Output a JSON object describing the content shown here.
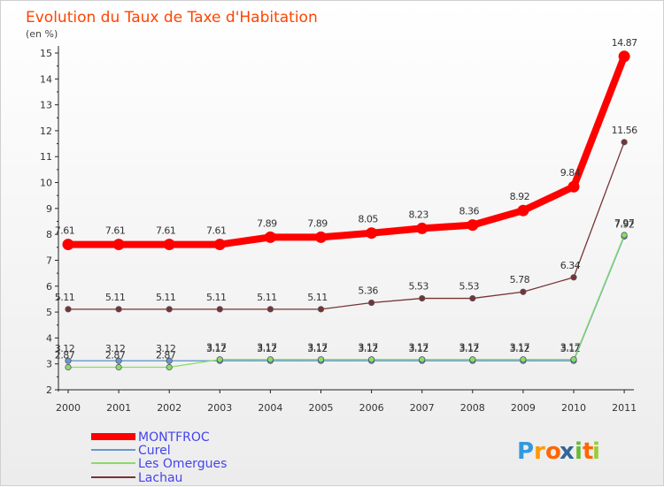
{
  "chart_data": {
    "type": "line",
    "title": "Evolution du Taux de Taxe d'Habitation",
    "ylabel": "(en %)",
    "xlabel": "",
    "ylim": [
      2,
      15
    ],
    "yticks": [
      "2",
      "3",
      "4",
      "5",
      "6",
      "7",
      "8",
      "9",
      "10",
      "11",
      "12",
      "13",
      "14",
      "15"
    ],
    "categories": [
      "2000",
      "2001",
      "2002",
      "2003",
      "2004",
      "2005",
      "2006",
      "2007",
      "2008",
      "2009",
      "2010",
      "2011"
    ],
    "series": [
      {
        "name": "MONTFROC",
        "color": "#ff0000",
        "values": [
          7.61,
          7.61,
          7.61,
          7.61,
          7.89,
          7.89,
          8.05,
          8.23,
          8.36,
          8.92,
          9.84,
          14.87
        ],
        "labels": [
          "7.61",
          "7.61",
          "7.61",
          "7.61",
          "7.89",
          "7.89",
          "8.05",
          "8.23",
          "8.36",
          "8.92",
          "9.84",
          "14.87"
        ]
      },
      {
        "name": "Curel",
        "color": "#6699cc",
        "values": [
          3.12,
          3.12,
          3.12,
          3.12,
          3.12,
          3.12,
          3.12,
          3.12,
          3.12,
          3.12,
          3.12,
          7.92
        ],
        "labels": [
          "3.12",
          "3.12",
          "3.12",
          "3.12",
          "3.12",
          "3.12",
          "3.12",
          "3.12",
          "3.12",
          "3.12",
          "3.12",
          "7.92"
        ]
      },
      {
        "name": "Les Omergues",
        "color": "#88dd66",
        "values": [
          2.87,
          2.87,
          2.87,
          3.17,
          3.17,
          3.17,
          3.17,
          3.17,
          3.17,
          3.17,
          3.17,
          7.97
        ],
        "labels": [
          "2.87",
          "2.87",
          "2.87",
          "3.17",
          "3.17",
          "3.17",
          "3.17",
          "3.17",
          "3.17",
          "3.17",
          "3.17",
          "7.97"
        ]
      },
      {
        "name": "Lachau",
        "color": "#773333",
        "values": [
          5.11,
          5.11,
          5.11,
          5.11,
          5.11,
          5.11,
          5.36,
          5.53,
          5.53,
          5.78,
          6.34,
          11.56
        ],
        "labels": [
          "5.11",
          "5.11",
          "5.11",
          "5.11",
          "5.11",
          "5.11",
          "5.36",
          "5.53",
          "5.53",
          "5.78",
          "6.34",
          "11.56"
        ]
      }
    ],
    "legend_position": "bottom-left",
    "grid": false
  },
  "logo": {
    "letters": [
      "P",
      "r",
      "o",
      "x",
      "i",
      "t",
      "i"
    ],
    "colors": [
      "#3399dd",
      "#ff9900",
      "#ff6600",
      "#336699",
      "#66bb33",
      "#ff6600",
      "#99cc33"
    ]
  }
}
